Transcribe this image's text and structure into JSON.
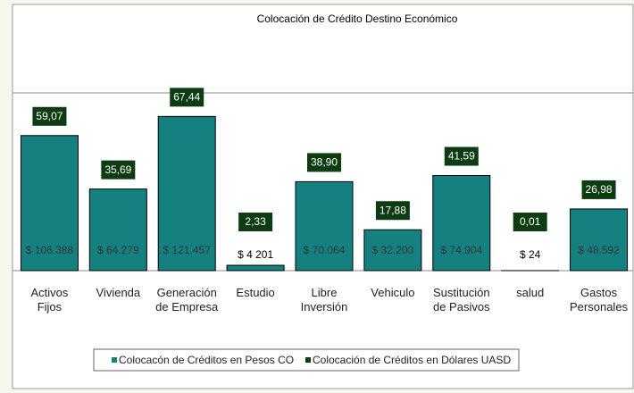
{
  "chart_data": {
    "type": "bar",
    "title": "Colocación de Crédito  Destino Económico",
    "categories": [
      "Activos\nFijos",
      "Vivienda",
      "Generación\nde Empresa",
      "Estudio",
      "Libre\nInversión",
      "Vehiculo",
      "Sustitución\nde Pasivos",
      "salud",
      "Gastos\nPersonales"
    ],
    "series": [
      {
        "name": "Colocacón de Créditos en Pesos CO",
        "color": "#158080",
        "values": [
          106388,
          64279,
          121457,
          4201,
          70064,
          32200,
          74904,
          24,
          48592
        ],
        "value_labels": [
          "$ 106.388",
          "$ 64.279",
          "$ 121.457",
          "$ 4 201",
          "$ 70.064",
          "$ 32.200",
          "$ 74.904",
          "$ 24",
          "$ 48.592"
        ]
      },
      {
        "name": "Colocación de Créditos en Dólares UASD",
        "color": "#0d3b12",
        "values": [
          59.07,
          35.69,
          67.44,
          2.33,
          38.9,
          17.88,
          41.59,
          0.01,
          26.98
        ],
        "value_labels": [
          "59,07",
          "35,69",
          "67,44",
          "2,33",
          "38,90",
          "17,88",
          "41,59",
          "0,01",
          "26,98"
        ]
      }
    ],
    "ylim": [
      0,
      140000
    ]
  }
}
